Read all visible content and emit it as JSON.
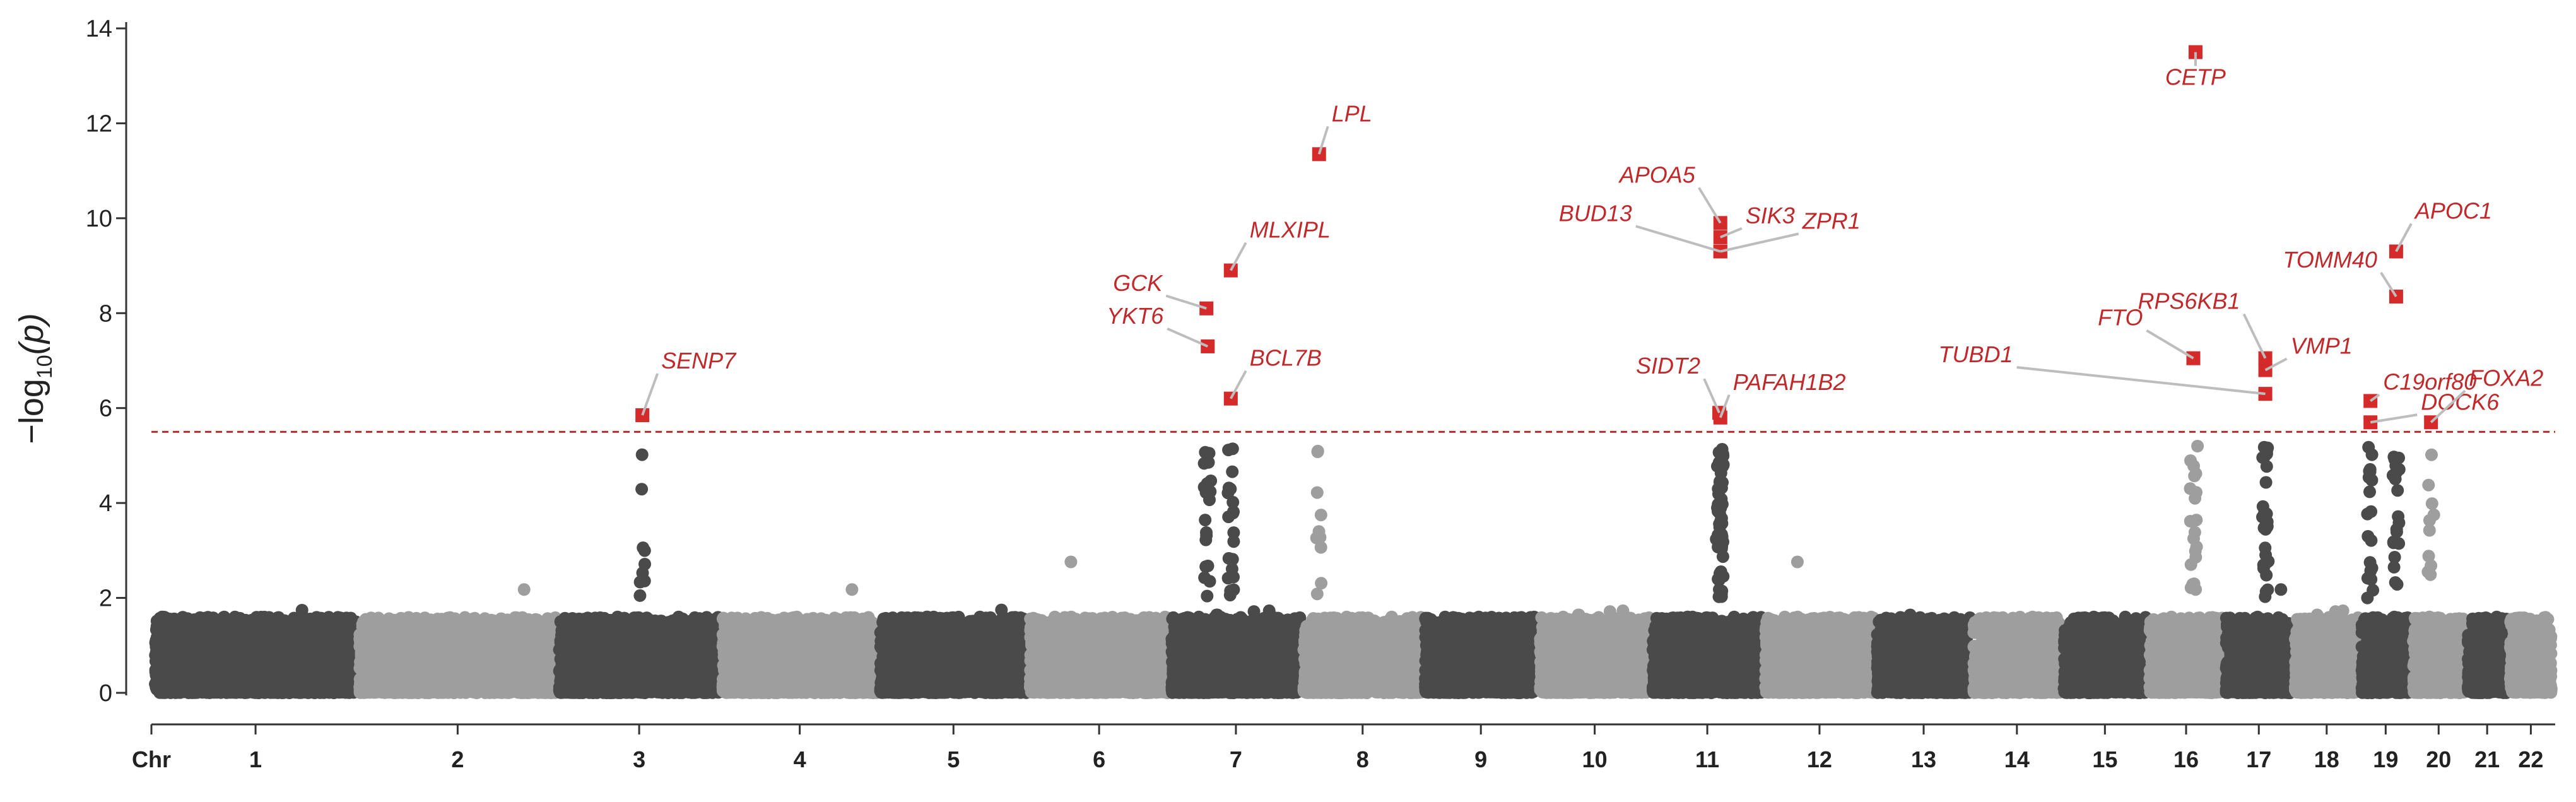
{
  "chart_data": {
    "type": "scatter",
    "subtype": "manhattan",
    "title": "",
    "ylabel": "−log10(p)",
    "ylabel_parts": {
      "prefix": "−log",
      "sub": "10",
      "suffix": "(p)"
    },
    "xlabel_prefix": "Chr",
    "ylim": [
      0,
      14
    ],
    "yticks": [
      0,
      2,
      4,
      6,
      8,
      10,
      12,
      14
    ],
    "significance_threshold": 5.5,
    "chromosomes": [
      {
        "name": "1",
        "length": 249
      },
      {
        "name": "2",
        "length": 243
      },
      {
        "name": "3",
        "length": 198
      },
      {
        "name": "4",
        "length": 191
      },
      {
        "name": "5",
        "length": 181
      },
      {
        "name": "6",
        "length": 171
      },
      {
        "name": "7",
        "length": 159
      },
      {
        "name": "8",
        "length": 146
      },
      {
        "name": "9",
        "length": 138
      },
      {
        "name": "10",
        "length": 135
      },
      {
        "name": "11",
        "length": 135
      },
      {
        "name": "12",
        "length": 134
      },
      {
        "name": "13",
        "length": 115
      },
      {
        "name": "14",
        "length": 107
      },
      {
        "name": "15",
        "length": 102
      },
      {
        "name": "16",
        "length": 90
      },
      {
        "name": "17",
        "length": 81
      },
      {
        "name": "18",
        "length": 78
      },
      {
        "name": "19",
        "length": 59
      },
      {
        "name": "20",
        "length": 63
      },
      {
        "name": "21",
        "length": 48
      },
      {
        "name": "22",
        "length": 51
      }
    ],
    "colors": {
      "dark": "#4a4a4a",
      "light": "#9e9e9e",
      "hit": "#d42a2a",
      "threshold": "#c0282a",
      "leader": "#bdbdbd"
    },
    "hits": [
      {
        "gene": "SENP7",
        "chr": "3",
        "pos": 0.52,
        "y": 5.85
      },
      {
        "gene": "LPL",
        "chr": "8",
        "pos": 0.13,
        "y": 11.35
      },
      {
        "gene": "MLXIPL",
        "chr": "7",
        "pos": 0.46,
        "y": 8.9
      },
      {
        "gene": "GCK",
        "chr": "7",
        "pos": 0.27,
        "y": 8.1
      },
      {
        "gene": "YKT6",
        "chr": "7",
        "pos": 0.28,
        "y": 7.3
      },
      {
        "gene": "BCL7B",
        "chr": "7",
        "pos": 0.46,
        "y": 6.2
      },
      {
        "gene": "APOA5",
        "chr": "11",
        "pos": 0.62,
        "y": 9.9
      },
      {
        "gene": "SIK3",
        "chr": "11",
        "pos": 0.62,
        "y": 9.6
      },
      {
        "gene": "BUD13",
        "chr": "11",
        "pos": 0.62,
        "y": 9.3
      },
      {
        "gene": "ZPR1",
        "chr": "11",
        "pos": 0.62,
        "y": 9.3
      },
      {
        "gene": "SIDT2",
        "chr": "11",
        "pos": 0.61,
        "y": 5.9
      },
      {
        "gene": "PAFAH1B2",
        "chr": "11",
        "pos": 0.62,
        "y": 5.8
      },
      {
        "gene": "CETP",
        "chr": "16",
        "pos": 0.63,
        "y": 13.5
      },
      {
        "gene": "FTO",
        "chr": "16",
        "pos": 0.6,
        "y": 7.05
      },
      {
        "gene": "RPS6KB1",
        "chr": "17",
        "pos": 0.6,
        "y": 7.05
      },
      {
        "gene": "TUBD1",
        "chr": "17",
        "pos": 0.6,
        "y": 6.3
      },
      {
        "gene": "VMP1",
        "chr": "17",
        "pos": 0.6,
        "y": 6.8
      },
      {
        "gene": "APOC1",
        "chr": "19",
        "pos": 0.72,
        "y": 9.3
      },
      {
        "gene": "TOMM40",
        "chr": "19",
        "pos": 0.72,
        "y": 8.35
      },
      {
        "gene": "C19orf80",
        "chr": "19",
        "pos": 0.18,
        "y": 6.15
      },
      {
        "gene": "DOCK6",
        "chr": "19",
        "pos": 0.18,
        "y": 5.7
      },
      {
        "gene": "FOXA2",
        "chr": "20",
        "pos": 0.35,
        "y": 5.7
      }
    ]
  }
}
